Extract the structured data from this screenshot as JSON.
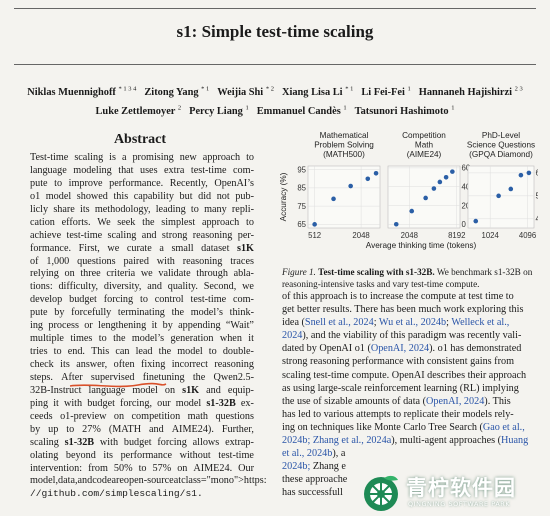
{
  "paper": {
    "title": "s1: Simple test-time scaling",
    "authors": [
      {
        "name": "Niklas Muennighoff",
        "aff": "* 1 3 4"
      },
      {
        "name": "Zitong Yang",
        "aff": "* 1"
      },
      {
        "name": "Weijia Shi",
        "aff": "* 2"
      },
      {
        "name": "Xiang Lisa Li",
        "aff": "* 1"
      },
      {
        "name": "Li Fei-Fei",
        "aff": "1"
      },
      {
        "name": "Hannaneh Hajishirzi",
        "aff": "2 3"
      },
      {
        "name": "Luke Zettlemoyer",
        "aff": "2"
      },
      {
        "name": "Percy Liang",
        "aff": "1"
      },
      {
        "name": "Emmanuel Candès",
        "aff": "1"
      },
      {
        "name": "Tatsunori Hashimoto",
        "aff": "1"
      }
    ]
  },
  "abstract": {
    "heading": "Abstract",
    "lines": [
      "Test-time scaling is a promising new approach to",
      "language modeling that uses extra test-time com-",
      "pute to improve performance. Recently, OpenAI’s",
      "o1 model showed this capability but did not pub-",
      "licly share its methodology, leading to many repli-",
      "cation efforts. We seek the simplest approach to",
      "achieve test-time scaling and strong reasoning per-",
      "formance. First, we curate a small dataset s1K",
      "of 1,000 questions paired with reasoning traces",
      "relying on three criteria we validate through abla-",
      "tions: difficulty, diversity, and quality. Second, we",
      "develop budget forcing to control test-time com-",
      "pute by forcefully terminating the model’s think-",
      "ing process or lengthening it by appending “Wait”",
      "multiple times to the model’s generation when it",
      "tries to end. This can lead the model to double-",
      "check its answer, often fixing incorrect reasoning",
      "steps. After supervised finetuning the Qwen2.5-",
      "32B-Instruct language model on s1K and equip-",
      "ping it with budget forcing, our model s1-32B ex-",
      "ceeds o1-preview on competition math questions",
      "by up to 27% (MATH and AIME24). Further,",
      "scaling s1-32B with budget forcing allows extrap-",
      "olating beyond its performance without test-time",
      "intervention: from 50% to 57% on AIME24. Our",
      "model, data, and code are open-source at https:",
      "//github.com/simplescaling/s1."
    ]
  },
  "figure": {
    "caption_label": "Figure 1.",
    "caption_bold": "Test-time scaling with s1-32B.",
    "caption_rest": "We benchmark s1-32B on reasoning-intensive tasks and vary test-time compute.",
    "x_label": "Average thinking time (tokens)",
    "y_label": "Accuracy (%)"
  },
  "chart_data": [
    {
      "type": "scatter",
      "title": "Mathematical Problem Solving (MATH500)",
      "x_scale": "log2",
      "x_ticks": [
        "512",
        "2048"
      ],
      "y_ticks": [
        "65",
        "75",
        "85",
        "95"
      ],
      "ylim": [
        63,
        97
      ],
      "x": [
        512,
        900,
        1500,
        2500,
        3200
      ],
      "y": [
        65,
        79,
        86,
        90,
        93
      ]
    },
    {
      "type": "scatter",
      "title": "Competition Math (AIME24)",
      "x_scale": "log2",
      "x_ticks": [
        "2048",
        "8192"
      ],
      "y_ticks": [
        "0",
        "20",
        "40",
        "60"
      ],
      "ylim": [
        -4,
        62
      ],
      "x": [
        1400,
        2200,
        3300,
        4200,
        5000,
        6000,
        7200
      ],
      "y": [
        0,
        14,
        28,
        38,
        45,
        50,
        56
      ]
    },
    {
      "type": "scatter",
      "title": "PhD-Level Science Questions (GPQA Diamond)",
      "x_scale": "log2",
      "x_ticks": [
        "1024",
        "4096"
      ],
      "y_ticks": [
        "40",
        "50",
        "60"
      ],
      "ylim": [
        36,
        63
      ],
      "x": [
        600,
        1400,
        2200,
        3200,
        4300
      ],
      "y": [
        39,
        50,
        53,
        59,
        60
      ]
    }
  ],
  "right_column": {
    "lines": [
      "of this approach is to increase the compute at test time to",
      "get better results. There has been much work exploring this",
      "idea (Snell et al., 2024; Wu et al., 2024b; Welleck et al.,",
      "2024), and the viability of this paradigm was recently vali-",
      "dated by OpenAI o1 (OpenAI, 2024). o1 has demonstrated",
      "strong reasoning performance with consistent gains from",
      "scaling test-time compute. OpenAI describes their approach",
      "as using large-scale reinforcement learning (RL) implying",
      "the use of sizable amounts of data (OpenAI, 2024). This",
      "has led to various attempts to replicate their models rely-",
      "ing on techniques like Monte Carlo Tree Search (Gao et al.,",
      "2024b; Zhang et al., 2024a), multi-agent approaches (Huang",
      "et al., 2024b), a",
      "2024b; Zhang e",
      "these approache",
      "has successfull"
    ]
  },
  "watermark": {
    "text": "青柠软件园",
    "subtext": "QINGNING SOFTWARE PARK",
    "color": "#1e8a55"
  }
}
